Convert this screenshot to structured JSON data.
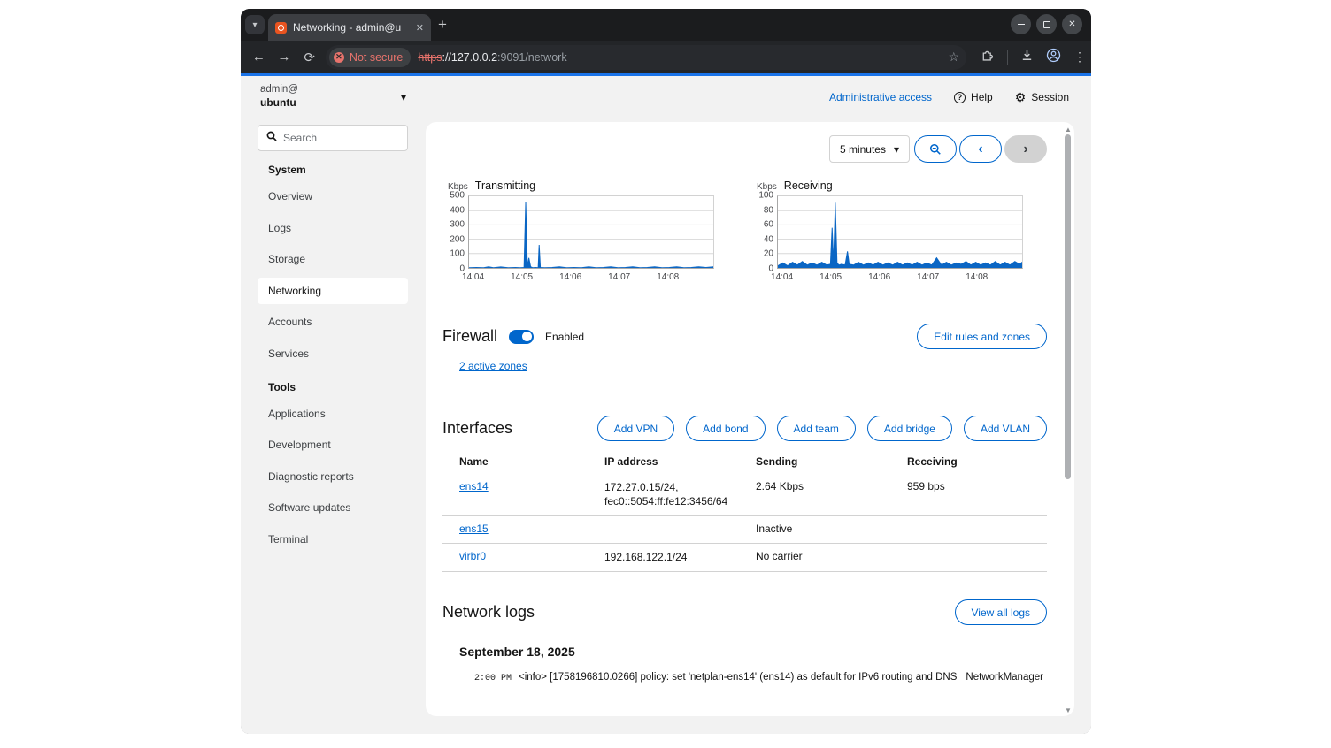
{
  "browser": {
    "tab_title": "Networking - admin@u",
    "not_secure_label": "Not secure",
    "url": {
      "scheme": "https",
      "host": "://127.0.0.2",
      "path": ":9091/network"
    }
  },
  "masthead": {
    "user_line1": "admin@",
    "user_line2": "ubuntu",
    "admin_access_label": "Administrative access",
    "help_label": "Help",
    "session_label": "Session"
  },
  "sidebar": {
    "search_placeholder": "Search",
    "sections": [
      {
        "title": "System",
        "items": [
          "Overview",
          "Logs",
          "Storage",
          "Networking",
          "Accounts",
          "Services"
        ],
        "selected": "Networking"
      },
      {
        "title": "Tools",
        "items": [
          "Applications",
          "Development",
          "Diagnostic reports",
          "Software updates",
          "Terminal"
        ]
      }
    ]
  },
  "controls": {
    "interval": "5 minutes"
  },
  "chart_data": [
    {
      "id": "transmitting",
      "type": "area",
      "title": "Transmitting",
      "unit": "Kbps",
      "ylim": [
        0,
        500
      ],
      "yticks": [
        0,
        100,
        200,
        300,
        400,
        500
      ],
      "xticks": [
        "14:04",
        "14:05",
        "14:06",
        "14:07",
        "14:08"
      ],
      "xtick_pos": [
        0.02,
        0.218,
        0.416,
        0.614,
        0.812
      ],
      "color": "#0b66c4",
      "grid": true,
      "legend": false,
      "points": [
        [
          0,
          2
        ],
        [
          0.03,
          3
        ],
        [
          0.06,
          2
        ],
        [
          0.08,
          8
        ],
        [
          0.1,
          2
        ],
        [
          0.13,
          7
        ],
        [
          0.16,
          2
        ],
        [
          0.19,
          3
        ],
        [
          0.21,
          2
        ],
        [
          0.225,
          3
        ],
        [
          0.232,
          460
        ],
        [
          0.239,
          10
        ],
        [
          0.245,
          70
        ],
        [
          0.252,
          8
        ],
        [
          0.26,
          2
        ],
        [
          0.272,
          3
        ],
        [
          0.283,
          2
        ],
        [
          0.287,
          160
        ],
        [
          0.292,
          3
        ],
        [
          0.31,
          2
        ],
        [
          0.34,
          3
        ],
        [
          0.37,
          8
        ],
        [
          0.4,
          2
        ],
        [
          0.43,
          3
        ],
        [
          0.46,
          2
        ],
        [
          0.49,
          8
        ],
        [
          0.52,
          2
        ],
        [
          0.55,
          3
        ],
        [
          0.58,
          8
        ],
        [
          0.61,
          2
        ],
        [
          0.64,
          3
        ],
        [
          0.67,
          8
        ],
        [
          0.7,
          2
        ],
        [
          0.73,
          3
        ],
        [
          0.76,
          8
        ],
        [
          0.79,
          2
        ],
        [
          0.82,
          3
        ],
        [
          0.85,
          8
        ],
        [
          0.88,
          2
        ],
        [
          0.91,
          3
        ],
        [
          0.94,
          8
        ],
        [
          0.97,
          3
        ],
        [
          1,
          8
        ]
      ]
    },
    {
      "id": "receiving",
      "type": "area",
      "title": "Receiving",
      "unit": "Kbps",
      "ylim": [
        0,
        100
      ],
      "yticks": [
        0,
        20,
        40,
        60,
        80,
        100
      ],
      "xticks": [
        "14:04",
        "14:05",
        "14:06",
        "14:07",
        "14:08"
      ],
      "xtick_pos": [
        0.02,
        0.218,
        0.416,
        0.614,
        0.812
      ],
      "color": "#0b66c4",
      "grid": true,
      "legend": false,
      "points": [
        [
          0,
          3
        ],
        [
          0.02,
          7
        ],
        [
          0.04,
          3
        ],
        [
          0.06,
          8
        ],
        [
          0.08,
          4
        ],
        [
          0.1,
          9
        ],
        [
          0.12,
          4
        ],
        [
          0.14,
          7
        ],
        [
          0.16,
          4
        ],
        [
          0.18,
          8
        ],
        [
          0.2,
          4
        ],
        [
          0.215,
          5
        ],
        [
          0.222,
          56
        ],
        [
          0.228,
          6
        ],
        [
          0.235,
          91
        ],
        [
          0.242,
          7
        ],
        [
          0.25,
          4
        ],
        [
          0.26,
          5
        ],
        [
          0.275,
          4
        ],
        [
          0.285,
          23
        ],
        [
          0.292,
          5
        ],
        [
          0.31,
          4
        ],
        [
          0.33,
          8
        ],
        [
          0.35,
          4
        ],
        [
          0.37,
          7
        ],
        [
          0.39,
          4
        ],
        [
          0.41,
          8
        ],
        [
          0.43,
          4
        ],
        [
          0.45,
          7
        ],
        [
          0.47,
          4
        ],
        [
          0.49,
          8
        ],
        [
          0.51,
          4
        ],
        [
          0.53,
          7
        ],
        [
          0.55,
          4
        ],
        [
          0.57,
          8
        ],
        [
          0.59,
          4
        ],
        [
          0.61,
          7
        ],
        [
          0.63,
          4
        ],
        [
          0.65,
          14
        ],
        [
          0.67,
          4
        ],
        [
          0.69,
          8
        ],
        [
          0.71,
          4
        ],
        [
          0.73,
          7
        ],
        [
          0.75,
          5
        ],
        [
          0.77,
          9
        ],
        [
          0.79,
          4
        ],
        [
          0.81,
          8
        ],
        [
          0.83,
          4
        ],
        [
          0.85,
          7
        ],
        [
          0.87,
          4
        ],
        [
          0.89,
          9
        ],
        [
          0.91,
          4
        ],
        [
          0.93,
          8
        ],
        [
          0.95,
          4
        ],
        [
          0.97,
          9
        ],
        [
          0.99,
          5
        ],
        [
          1,
          8
        ]
      ]
    }
  ],
  "firewall": {
    "title": "Firewall",
    "state": "Enabled",
    "zones_link": "2 active zones",
    "edit_button": "Edit rules and zones"
  },
  "interfaces": {
    "title": "Interfaces",
    "buttons": [
      "Add VPN",
      "Add bond",
      "Add team",
      "Add bridge",
      "Add VLAN"
    ],
    "columns": [
      "Name",
      "IP address",
      "Sending",
      "Receiving"
    ],
    "rows": [
      {
        "name": "ens14",
        "ip_lines": [
          "172.27.0.15/24,",
          "fec0::5054:ff:fe12:3456/64"
        ],
        "sending": "2.64 Kbps",
        "receiving": "959 bps"
      },
      {
        "name": "ens15",
        "ip_lines": [],
        "sending": "Inactive",
        "receiving": ""
      },
      {
        "name": "virbr0",
        "ip_lines": [
          "192.168.122.1/24"
        ],
        "sending": "No carrier",
        "receiving": ""
      }
    ]
  },
  "logs": {
    "title": "Network logs",
    "view_all_button": "View all logs",
    "date": "September 18, 2025",
    "entries": [
      {
        "time": "2:00 PM",
        "message": "<info> [1758196810.0266] policy: set 'netplan-ens14' (ens14) as default for IPv6 routing and DNS",
        "service": "NetworkManager"
      }
    ]
  },
  "icons": {
    "caret_down": "▾",
    "chevron_left": "‹",
    "chevron_right": "›",
    "kebab": "⋮",
    "back_arrow": "←",
    "forward_arrow": "→",
    "reload": "⟳",
    "star": "☆",
    "plus": "+",
    "close": "✕",
    "not_secure_glyph": "✕",
    "question": "?",
    "gear": "⚙",
    "scroll_up": "▲",
    "scroll_down": "▼"
  },
  "colors": {
    "link_blue": "#0066cc",
    "chart_blue": "#0b66c4",
    "accent_line": "#1a73e8",
    "not_secure_red": "#e8736c",
    "page_gray": "#f2f2f2",
    "favicon_orange": "#e95420"
  }
}
